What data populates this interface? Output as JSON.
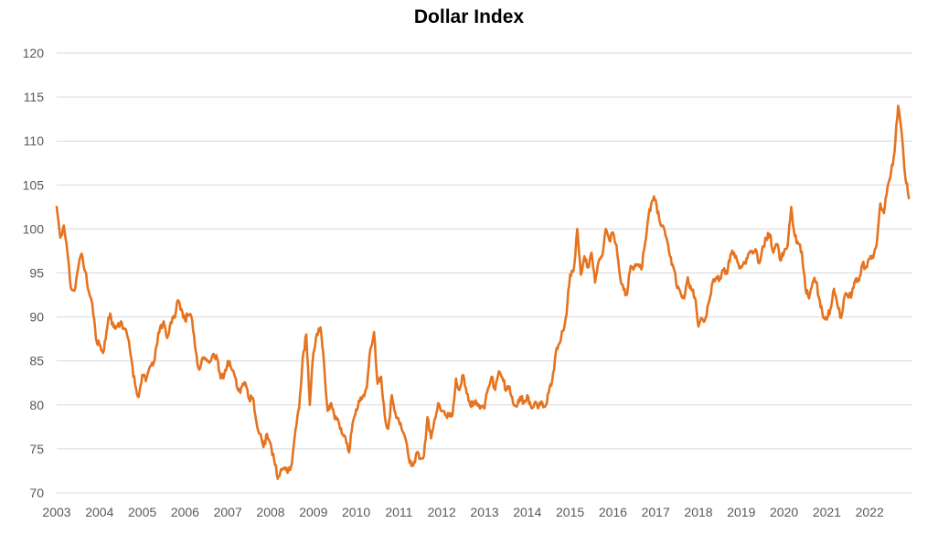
{
  "chart_data": {
    "type": "line",
    "title": "Dollar Index",
    "xlabel": "",
    "ylabel": "",
    "legend": "none",
    "grid": "horizontal",
    "ylim": [
      70,
      120
    ],
    "y_ticks": [
      120,
      115,
      110,
      105,
      100,
      95,
      90,
      85,
      80,
      75,
      70
    ],
    "x_tick_labels": [
      "2003",
      "2004",
      "2005",
      "2006",
      "2007",
      "2008",
      "2009",
      "2010",
      "2011",
      "2012",
      "2013",
      "2014",
      "2015",
      "2016",
      "2017",
      "2018",
      "2019",
      "2020",
      "2021",
      "2022"
    ],
    "colors": {
      "line": "#E5731F",
      "gridline": "#D9D9D9",
      "tick_label": "#595959",
      "title": "#4F4F4F",
      "background": "#FFFFFF"
    },
    "series": [
      {
        "name": "Dollar Index",
        "frequency": "monthly",
        "start": "2003-01",
        "end": "2022-12",
        "values": [
          102.5,
          99.0,
          100.4,
          97.4,
          93.3,
          93.0,
          95.5,
          97.2,
          95.2,
          92.9,
          91.5,
          87.6,
          86.9,
          85.9,
          88.4,
          90.4,
          88.8,
          88.9,
          89.5,
          88.6,
          87.6,
          85.1,
          82.3,
          80.9,
          83.4,
          82.7,
          84.2,
          84.5,
          86.7,
          88.8,
          89.5,
          87.6,
          89.4,
          89.9,
          91.9,
          90.9,
          89.6,
          90.2,
          89.6,
          86.1,
          84.0,
          85.4,
          85.2,
          84.9,
          85.8,
          85.3,
          83.0,
          83.4,
          85.0,
          84.1,
          83.2,
          81.6,
          82.1,
          82.4,
          80.6,
          80.8,
          78.1,
          76.7,
          75.2,
          76.7,
          75.6,
          73.7,
          71.6,
          72.7,
          72.9,
          72.5,
          73.4,
          77.2,
          79.6,
          85.3,
          88.0,
          80.0,
          85.9,
          88.1,
          88.8,
          84.6,
          79.3,
          80.2,
          78.4,
          78.2,
          76.7,
          76.3,
          74.6,
          77.9,
          79.5,
          80.4,
          81.1,
          82.0,
          86.4,
          88.3,
          82.4,
          83.2,
          78.8,
          77.3,
          81.1,
          79.1,
          78.1,
          77.0,
          75.9,
          73.4,
          73.1,
          74.6,
          73.9,
          74.2,
          78.6,
          76.2,
          78.4,
          80.2,
          79.3,
          78.8,
          79.0,
          78.8,
          83.0,
          81.7,
          83.4,
          81.3,
          79.9,
          80.1,
          80.2,
          79.8,
          79.6,
          81.9,
          83.2,
          81.7,
          83.8,
          83.1,
          81.6,
          82.1,
          80.2,
          79.8,
          80.9,
          80.2,
          81.1,
          79.8,
          80.2,
          79.6,
          80.4,
          79.8,
          81.4,
          82.8,
          86.0,
          87.0,
          88.4,
          90.3,
          94.8,
          95.3,
          100.0,
          94.8,
          96.9,
          95.6,
          97.3,
          93.9,
          96.3,
          96.9,
          100.0,
          98.7,
          99.6,
          98.2,
          94.6,
          93.1,
          92.6,
          95.8,
          95.6,
          96.0,
          95.4,
          98.3,
          101.5,
          103.2,
          103.3,
          101.1,
          100.4,
          99.0,
          96.9,
          95.6,
          93.3,
          92.7,
          92.1,
          94.5,
          93.1,
          92.2,
          88.9,
          89.8,
          89.9,
          91.8,
          94.0,
          94.5,
          94.4,
          95.3,
          94.9,
          97.1,
          97.3,
          96.2,
          95.6,
          96.1,
          97.2,
          97.5,
          97.7,
          96.1,
          98.0,
          98.9,
          99.4,
          97.3,
          98.3,
          96.4,
          97.4,
          98.1,
          102.5,
          99.2,
          98.3,
          97.4,
          93.3,
          92.1,
          93.9,
          94.0,
          91.9,
          89.9,
          89.7,
          90.9,
          93.2,
          91.3,
          89.9,
          92.4,
          92.2,
          92.6,
          94.2,
          94.1,
          96.0,
          95.7,
          96.6,
          96.7,
          98.3,
          102.9,
          101.8,
          104.7,
          106.4,
          108.8,
          114.0,
          110.9,
          105.9,
          103.5
        ]
      }
    ],
    "render": {
      "noise_amplitude": 0.5,
      "noise_seed": 11,
      "upsample_per_month": 4,
      "line_width": 2.6
    }
  }
}
